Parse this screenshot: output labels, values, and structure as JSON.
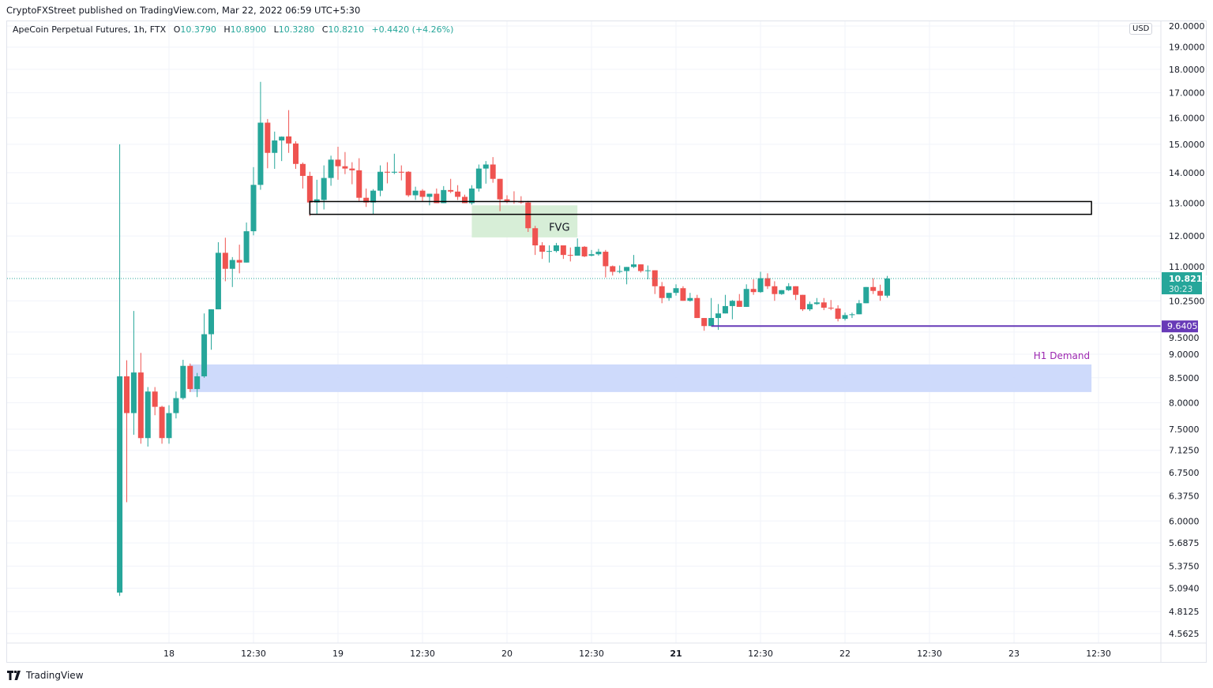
{
  "header": {
    "published": "CryptoFXStreet published on TradingView.com, Mar 22, 2022 06:59 UTC+5:30",
    "symbol": "ApeCoin Perpetual Futures, 1h, FTX",
    "o_label": "O",
    "o_value": "10.3790",
    "h_label": "H",
    "h_value": "10.8900",
    "l_label": "L",
    "l_value": "10.3280",
    "c_label": "C",
    "c_value": "10.8210",
    "change": "+0.4420 (+4.26%)"
  },
  "currency_button": "USD",
  "footer": {
    "brand": "TradingView",
    "logo_icon": "tradingview-logo-icon"
  },
  "colors": {
    "up": "#26a69a",
    "down": "#ef5350",
    "support_line": "#673ab7",
    "demand_zone": "#c9d6fb",
    "fvg_zone": "#d7eed7",
    "demand_label": "#9c27b0"
  },
  "chart_data": {
    "type": "candlestick",
    "interval": "1h",
    "y_scale": "log",
    "ylim": [
      4.5,
      20.5
    ],
    "grid": true,
    "y_ticks": [
      {
        "v": 20,
        "label": "20.0000"
      },
      {
        "v": 19,
        "label": "19.0000"
      },
      {
        "v": 18,
        "label": "18.0000"
      },
      {
        "v": 17,
        "label": "17.0000"
      },
      {
        "v": 16,
        "label": "16.0000"
      },
      {
        "v": 15,
        "label": "15.0000"
      },
      {
        "v": 14,
        "label": "14.0000"
      },
      {
        "v": 13,
        "label": "13.0000"
      },
      {
        "v": 12,
        "label": "12.0000"
      },
      {
        "v": 11,
        "label": "11.0000"
      },
      {
        "v": 10.25,
        "label": "10.2500"
      },
      {
        "v": 9.5,
        "label": "9.5000"
      },
      {
        "v": 9,
        "label": "9.0000"
      },
      {
        "v": 8.5,
        "label": "8.5000"
      },
      {
        "v": 8,
        "label": "8.0000"
      },
      {
        "v": 7.5,
        "label": "7.5000"
      },
      {
        "v": 7.125,
        "label": "7.1250"
      },
      {
        "v": 6.75,
        "label": "6.7500"
      },
      {
        "v": 6.375,
        "label": "6.3750"
      },
      {
        "v": 6,
        "label": "6.0000"
      },
      {
        "v": 5.6875,
        "label": "5.6875"
      },
      {
        "v": 5.375,
        "label": "5.3750"
      },
      {
        "v": 5.094,
        "label": "5.0940"
      },
      {
        "v": 4.8125,
        "label": "4.8125"
      },
      {
        "v": 4.5625,
        "label": "4.5625"
      }
    ],
    "x_ticks": [
      {
        "t": "2022-03-18 00:00",
        "label": "18"
      },
      {
        "t": "2022-03-18 12:00",
        "label": "12:30"
      },
      {
        "t": "2022-03-19 00:00",
        "label": "19"
      },
      {
        "t": "2022-03-19 12:00",
        "label": "12:30"
      },
      {
        "t": "2022-03-20 00:00",
        "label": "20"
      },
      {
        "t": "2022-03-20 12:00",
        "label": "12:30"
      },
      {
        "t": "2022-03-21 00:00",
        "label": "21"
      },
      {
        "t": "2022-03-21 12:00",
        "label": "12:30"
      },
      {
        "t": "2022-03-22 00:00",
        "label": "22"
      },
      {
        "t": "2022-03-22 12:00",
        "label": "12:30"
      },
      {
        "t": "2022-03-23 00:00",
        "label": "23"
      },
      {
        "t": "2022-03-23 12:00",
        "label": "12:30"
      }
    ],
    "candles_columns": [
      "time",
      "open",
      "high",
      "low",
      "close"
    ],
    "candles": [
      [
        "2022-03-17 17:00",
        5.04,
        15.0,
        5.0,
        8.53
      ],
      [
        "2022-03-17 18:00",
        8.53,
        8.87,
        6.28,
        7.8
      ],
      [
        "2022-03-17 19:00",
        7.8,
        10.0,
        7.4,
        8.61
      ],
      [
        "2022-03-17 20:00",
        8.61,
        9.03,
        7.24,
        7.34
      ],
      [
        "2022-03-17 21:00",
        7.34,
        8.31,
        7.19,
        8.22
      ],
      [
        "2022-03-17 22:00",
        8.22,
        8.31,
        7.76,
        7.92
      ],
      [
        "2022-03-17 23:00",
        7.92,
        7.94,
        7.24,
        7.34
      ],
      [
        "2022-03-18 00:00",
        7.34,
        7.95,
        7.24,
        7.8
      ],
      [
        "2022-03-18 01:00",
        7.8,
        8.22,
        7.7,
        8.09
      ],
      [
        "2022-03-18 02:00",
        8.09,
        8.88,
        8.06,
        8.75
      ],
      [
        "2022-03-18 03:00",
        8.75,
        8.8,
        8.21,
        8.27
      ],
      [
        "2022-03-18 04:00",
        8.27,
        8.6,
        8.11,
        8.53
      ],
      [
        "2022-03-18 05:00",
        8.53,
        9.94,
        8.5,
        9.45
      ],
      [
        "2022-03-18 06:00",
        9.45,
        10.04,
        9.1,
        10.04
      ],
      [
        "2022-03-18 07:00",
        10.04,
        11.82,
        10.04,
        11.52
      ],
      [
        "2022-03-18 08:00",
        11.52,
        11.95,
        10.75,
        11.08
      ],
      [
        "2022-03-18 09:00",
        11.08,
        11.4,
        10.6,
        11.32
      ],
      [
        "2022-03-18 10:00",
        11.32,
        11.75,
        10.96,
        11.25
      ],
      [
        "2022-03-18 11:00",
        11.25,
        12.4,
        11.25,
        12.14
      ],
      [
        "2022-03-18 12:00",
        12.14,
        14.19,
        12.02,
        13.59
      ],
      [
        "2022-03-18 13:00",
        13.59,
        17.46,
        13.43,
        15.81
      ],
      [
        "2022-03-18 14:00",
        15.81,
        15.95,
        14.15,
        14.69
      ],
      [
        "2022-03-18 15:00",
        14.69,
        15.47,
        14.13,
        15.14
      ],
      [
        "2022-03-18 16:00",
        15.14,
        15.29,
        14.4,
        15.28
      ],
      [
        "2022-03-18 17:00",
        15.29,
        16.3,
        14.69,
        15.03
      ],
      [
        "2022-03-18 18:00",
        15.03,
        15.11,
        14.13,
        14.3
      ],
      [
        "2022-03-18 19:00",
        14.3,
        14.35,
        13.47,
        13.89
      ],
      [
        "2022-03-18 20:00",
        13.89,
        14.03,
        12.6,
        13.02
      ],
      [
        "2022-03-18 21:00",
        13.02,
        13.76,
        12.65,
        13.12
      ],
      [
        "2022-03-18 22:00",
        13.1,
        14.25,
        12.8,
        13.82
      ],
      [
        "2022-03-18 23:00",
        13.82,
        14.59,
        13.56,
        14.45
      ],
      [
        "2022-03-19 00:00",
        14.45,
        14.91,
        13.76,
        14.22
      ],
      [
        "2022-03-19 01:00",
        14.22,
        14.72,
        13.95,
        14.14
      ],
      [
        "2022-03-19 02:00",
        14.14,
        14.36,
        13.61,
        14.08
      ],
      [
        "2022-03-19 03:00",
        14.08,
        14.5,
        13.07,
        13.17
      ],
      [
        "2022-03-19 04:00",
        13.17,
        13.47,
        12.88,
        13.02
      ],
      [
        "2022-03-19 05:00",
        13.02,
        13.45,
        12.65,
        13.4
      ],
      [
        "2022-03-19 06:00",
        13.4,
        14.25,
        13.22,
        14.03
      ],
      [
        "2022-03-19 07:00",
        14.03,
        14.36,
        13.64,
        14.0
      ],
      [
        "2022-03-19 08:00",
        14.0,
        14.66,
        13.95,
        14.03
      ],
      [
        "2022-03-19 09:00",
        14.03,
        14.25,
        13.74,
        14.0
      ],
      [
        "2022-03-19 10:00",
        14.03,
        14.05,
        13.2,
        13.25
      ],
      [
        "2022-03-19 11:00",
        13.25,
        13.53,
        13.1,
        13.4
      ],
      [
        "2022-03-19 12:00",
        13.4,
        13.45,
        13.05,
        13.2
      ],
      [
        "2022-03-19 13:00",
        13.2,
        13.3,
        12.93,
        13.3
      ],
      [
        "2022-03-19 14:00",
        13.3,
        13.47,
        13.0,
        13.0
      ],
      [
        "2022-03-19 15:00",
        13.0,
        13.55,
        13.0,
        13.42
      ],
      [
        "2022-03-19 16:00",
        13.42,
        13.79,
        13.32,
        13.37
      ],
      [
        "2022-03-19 17:00",
        13.37,
        13.58,
        13.1,
        13.2
      ],
      [
        "2022-03-19 18:00",
        13.2,
        13.27,
        13.0,
        13.0
      ],
      [
        "2022-03-19 19:00",
        13.0,
        13.58,
        12.95,
        13.47
      ],
      [
        "2022-03-19 20:00",
        13.47,
        14.28,
        13.37,
        14.14
      ],
      [
        "2022-03-19 21:00",
        14.14,
        14.4,
        13.63,
        14.28
      ],
      [
        "2022-03-19 22:00",
        14.28,
        14.54,
        13.66,
        13.79
      ],
      [
        "2022-03-19 23:00",
        13.79,
        13.79,
        12.75,
        13.12
      ],
      [
        "2022-03-20 00:00",
        13.12,
        13.25,
        13.0,
        13.07
      ],
      [
        "2022-03-20 01:00",
        13.07,
        13.38,
        12.98,
        13.05
      ],
      [
        "2022-03-20 02:00",
        13.05,
        13.22,
        12.98,
        13.02
      ],
      [
        "2022-03-20 03:00",
        13.02,
        13.07,
        12.12,
        12.23
      ],
      [
        "2022-03-20 04:00",
        12.23,
        12.3,
        11.46,
        11.73
      ],
      [
        "2022-03-20 05:00",
        11.73,
        11.82,
        11.35,
        11.55
      ],
      [
        "2022-03-20 06:00",
        11.55,
        11.73,
        11.25,
        11.57
      ],
      [
        "2022-03-20 07:00",
        11.57,
        11.8,
        11.53,
        11.73
      ],
      [
        "2022-03-20 08:00",
        11.73,
        11.73,
        11.35,
        11.46
      ],
      [
        "2022-03-20 09:00",
        11.46,
        11.67,
        11.28,
        11.44
      ],
      [
        "2022-03-20 10:00",
        11.44,
        11.93,
        11.44,
        11.69
      ],
      [
        "2022-03-20 11:00",
        11.69,
        11.71,
        11.4,
        11.42
      ],
      [
        "2022-03-20 12:00",
        11.44,
        11.6,
        11.42,
        11.48
      ],
      [
        "2022-03-20 13:00",
        11.48,
        11.63,
        11.44,
        11.55
      ],
      [
        "2022-03-20 14:00",
        11.55,
        11.6,
        10.85,
        11.15
      ],
      [
        "2022-03-20 15:00",
        11.15,
        11.17,
        10.9,
        11.0
      ],
      [
        "2022-03-20 16:00",
        11.0,
        11.17,
        10.96,
        11.02
      ],
      [
        "2022-03-20 17:00",
        11.02,
        11.13,
        10.67,
        11.13
      ],
      [
        "2022-03-20 18:00",
        11.13,
        11.46,
        11.1,
        11.2
      ],
      [
        "2022-03-20 19:00",
        11.2,
        11.2,
        10.98,
        11.02
      ],
      [
        "2022-03-20 20:00",
        11.04,
        11.17,
        10.8,
        11.04
      ],
      [
        "2022-03-20 21:00",
        11.04,
        11.04,
        10.42,
        10.62
      ],
      [
        "2022-03-20 22:00",
        10.62,
        10.73,
        10.19,
        10.32
      ],
      [
        "2022-03-20 23:00",
        10.32,
        10.45,
        10.25,
        10.45
      ],
      [
        "2022-03-21 00:00",
        10.45,
        10.67,
        10.38,
        10.57
      ],
      [
        "2022-03-21 01:00",
        10.57,
        10.62,
        10.25,
        10.25
      ],
      [
        "2022-03-21 02:00",
        10.25,
        10.45,
        10.23,
        10.32
      ],
      [
        "2022-03-21 03:00",
        10.32,
        10.4,
        9.83,
        9.83
      ],
      [
        "2022-03-21 04:00",
        9.83,
        9.83,
        9.53,
        9.64
      ],
      [
        "2022-03-21 05:00",
        9.64,
        10.32,
        9.64,
        9.83
      ],
      [
        "2022-03-21 06:00",
        9.83,
        10.17,
        9.55,
        9.94
      ],
      [
        "2022-03-21 07:00",
        9.94,
        10.4,
        9.94,
        10.12
      ],
      [
        "2022-03-21 08:00",
        10.12,
        10.27,
        9.8,
        10.25
      ],
      [
        "2022-03-21 09:00",
        10.25,
        10.42,
        10.1,
        10.1
      ],
      [
        "2022-03-21 10:00",
        10.1,
        10.67,
        10.1,
        10.55
      ],
      [
        "2022-03-21 11:00",
        10.55,
        10.8,
        10.4,
        10.47
      ],
      [
        "2022-03-21 12:00",
        10.47,
        11.0,
        10.45,
        10.83
      ],
      [
        "2022-03-21 13:00",
        10.83,
        10.96,
        10.55,
        10.62
      ],
      [
        "2022-03-21 14:00",
        10.62,
        10.75,
        10.25,
        10.42
      ],
      [
        "2022-03-21 15:00",
        10.42,
        10.52,
        10.4,
        10.52
      ],
      [
        "2022-03-21 16:00",
        10.52,
        10.7,
        10.5,
        10.62
      ],
      [
        "2022-03-21 17:00",
        10.62,
        10.62,
        10.27,
        10.4
      ],
      [
        "2022-03-21 18:00",
        10.4,
        10.4,
        10.0,
        10.04
      ],
      [
        "2022-03-21 19:00",
        10.04,
        10.23,
        10.0,
        10.17
      ],
      [
        "2022-03-21 20:00",
        10.17,
        10.32,
        10.15,
        10.21
      ],
      [
        "2022-03-21 21:00",
        10.21,
        10.32,
        10.02,
        10.08
      ],
      [
        "2022-03-21 22:00",
        10.08,
        10.27,
        10.02,
        10.06
      ],
      [
        "2022-03-21 23:00",
        10.06,
        10.14,
        9.75,
        9.81
      ],
      [
        "2022-03-22 00:00",
        9.81,
        9.96,
        9.77,
        9.9
      ],
      [
        "2022-03-22 01:00",
        9.9,
        9.96,
        9.83,
        9.92
      ],
      [
        "2022-03-22 02:00",
        9.92,
        10.27,
        9.92,
        10.19
      ],
      [
        "2022-03-22 03:00",
        10.19,
        10.6,
        10.19,
        10.6
      ],
      [
        "2022-03-22 04:00",
        10.6,
        10.83,
        10.42,
        10.5
      ],
      [
        "2022-03-22 05:00",
        10.5,
        10.66,
        10.25,
        10.38
      ],
      [
        "2022-03-22 06:00",
        10.379,
        10.89,
        10.328,
        10.821
      ]
    ],
    "annotations": {
      "supply_box": {
        "t_start": "2022-03-18 20:00",
        "t_end": "2022-03-23 11:00",
        "price_top": 13.05,
        "price_bottom": 12.65,
        "style": "outline"
      },
      "fvg_box": {
        "t_start": "2022-03-19 19:00",
        "t_end": "2022-03-20 10:00",
        "price_top": 12.93,
        "price_bottom": 11.96,
        "label": "FVG"
      },
      "demand_zone": {
        "t_start": "2022-03-18 03:00",
        "t_end": "2022-03-23 11:00",
        "price_top": 8.78,
        "price_bottom": 8.21,
        "label": "H1 Demand"
      },
      "support_line": {
        "t_start": "2022-03-21 05:00",
        "price": 9.6405,
        "label": "9.6405"
      },
      "last_price": {
        "price": 10.821,
        "label": "10.8210",
        "countdown": "30:23"
      }
    }
  }
}
